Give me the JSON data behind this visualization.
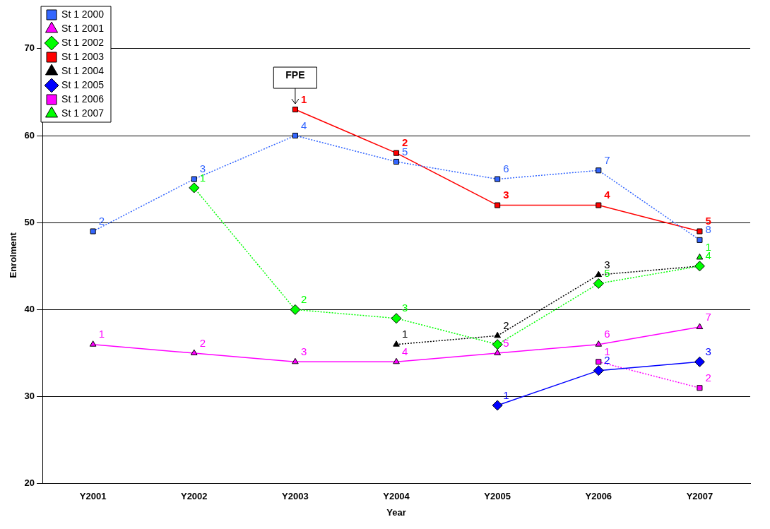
{
  "chart_data": {
    "type": "line",
    "xlabel": "Year",
    "ylabel": "Enrolment",
    "categories": [
      "Y2001",
      "Y2002",
      "Y2003",
      "Y2004",
      "Y2005",
      "Y2006",
      "Y2007"
    ],
    "ylim": [
      20,
      72.5
    ],
    "yticks": [
      20,
      30,
      40,
      50,
      60,
      70
    ],
    "grid": "y",
    "legend": "top left",
    "annotations": [
      {
        "text": "FPE",
        "x": "Y2003",
        "y": 63
      },
      {
        "text": "2",
        "x": "Y2001",
        "y": 49
      },
      {
        "text": "3",
        "x": "Y2002",
        "y": 55
      },
      {
        "text": "4",
        "x": "Y2003",
        "y": 60
      },
      {
        "text": "5",
        "x": "Y2004",
        "y": 57
      },
      {
        "text": "6",
        "x": "Y2005",
        "y": 55
      },
      {
        "text": "7",
        "x": "Y2006",
        "y": 56
      },
      {
        "text": "8",
        "x": "Y2007",
        "y": 48
      },
      {
        "text": "1",
        "x": "Y2001",
        "y": 36
      },
      {
        "text": "2",
        "x": "Y2002",
        "y": 35
      },
      {
        "text": "3",
        "x": "Y2003",
        "y": 34
      },
      {
        "text": "4",
        "x": "Y2004",
        "y": 34
      },
      {
        "text": "5",
        "x": "Y2005",
        "y": 35
      },
      {
        "text": "6",
        "x": "Y2006",
        "y": 36
      },
      {
        "text": "7",
        "x": "Y2007",
        "y": 38
      },
      {
        "text": "1",
        "x": "Y2002",
        "y": 54
      },
      {
        "text": "2",
        "x": "Y2003",
        "y": 40
      },
      {
        "text": "3",
        "x": "Y2004",
        "y": 39
      },
      {
        "text": "5",
        "x": "Y2006",
        "y": 43
      },
      {
        "text": "1",
        "x": "Y2003",
        "y": 63
      },
      {
        "text": "2",
        "x": "Y2004",
        "y": 58
      },
      {
        "text": "3",
        "x": "Y2005",
        "y": 52
      },
      {
        "text": "4",
        "x": "Y2006",
        "y": 52
      },
      {
        "text": "5",
        "x": "Y2007",
        "y": 49
      },
      {
        "text": "1",
        "x": "Y2004",
        "y": 36
      },
      {
        "text": "2",
        "x": "Y2005",
        "y": 37
      },
      {
        "text": "3",
        "x": "Y2006",
        "y": 44
      },
      {
        "text": "4",
        "x": "Y2007",
        "y": 45
      },
      {
        "text": "1",
        "x": "Y2005",
        "y": 29
      },
      {
        "text": "2",
        "x": "Y2006",
        "y": 33
      },
      {
        "text": "3",
        "x": "Y2007",
        "y": 34
      },
      {
        "text": "1",
        "x": "Y2006",
        "y": 34
      },
      {
        "text": "2",
        "x": "Y2007",
        "y": 31
      },
      {
        "text": "1",
        "x": "Y2007",
        "y": 46
      }
    ],
    "series": [
      {
        "name": "St 1 2000",
        "color": "#3366ff",
        "marker": "square",
        "line_style": "dotted",
        "values": [
          49,
          55,
          60,
          57,
          55,
          56,
          48
        ]
      },
      {
        "name": "St 1 2001",
        "color": "#ff00ff",
        "marker": "triangle",
        "line_style": "solid",
        "values": [
          36,
          35,
          34,
          34,
          35,
          36,
          38
        ]
      },
      {
        "name": "St 1 2002",
        "color": "#00ff00",
        "marker": "diamond",
        "line_style": "dotted",
        "values": [
          null,
          54,
          40,
          39,
          36,
          43,
          45
        ]
      },
      {
        "name": "St 1 2003",
        "color": "#ff0000",
        "marker": "square",
        "line_style": "solid",
        "values": [
          null,
          null,
          63,
          58,
          52,
          52,
          49
        ]
      },
      {
        "name": "St 1 2004",
        "color": "#000000",
        "marker": "triangle",
        "line_style": "dotted",
        "values": [
          null,
          null,
          null,
          36,
          37,
          44,
          45
        ]
      },
      {
        "name": "St 1 2005",
        "color": "#0000ff",
        "marker": "diamond",
        "line_style": "solid",
        "values": [
          null,
          null,
          null,
          null,
          29,
          33,
          34
        ]
      },
      {
        "name": "St 1 2006",
        "color": "#ff00ff",
        "marker": "square",
        "line_style": "dotted",
        "values": [
          null,
          null,
          null,
          null,
          null,
          34,
          31
        ]
      },
      {
        "name": "St 1 2007",
        "color": "#00ff00",
        "marker": "triangle",
        "line_style": "dotted",
        "values": [
          null,
          null,
          null,
          null,
          null,
          null,
          46
        ]
      }
    ]
  }
}
